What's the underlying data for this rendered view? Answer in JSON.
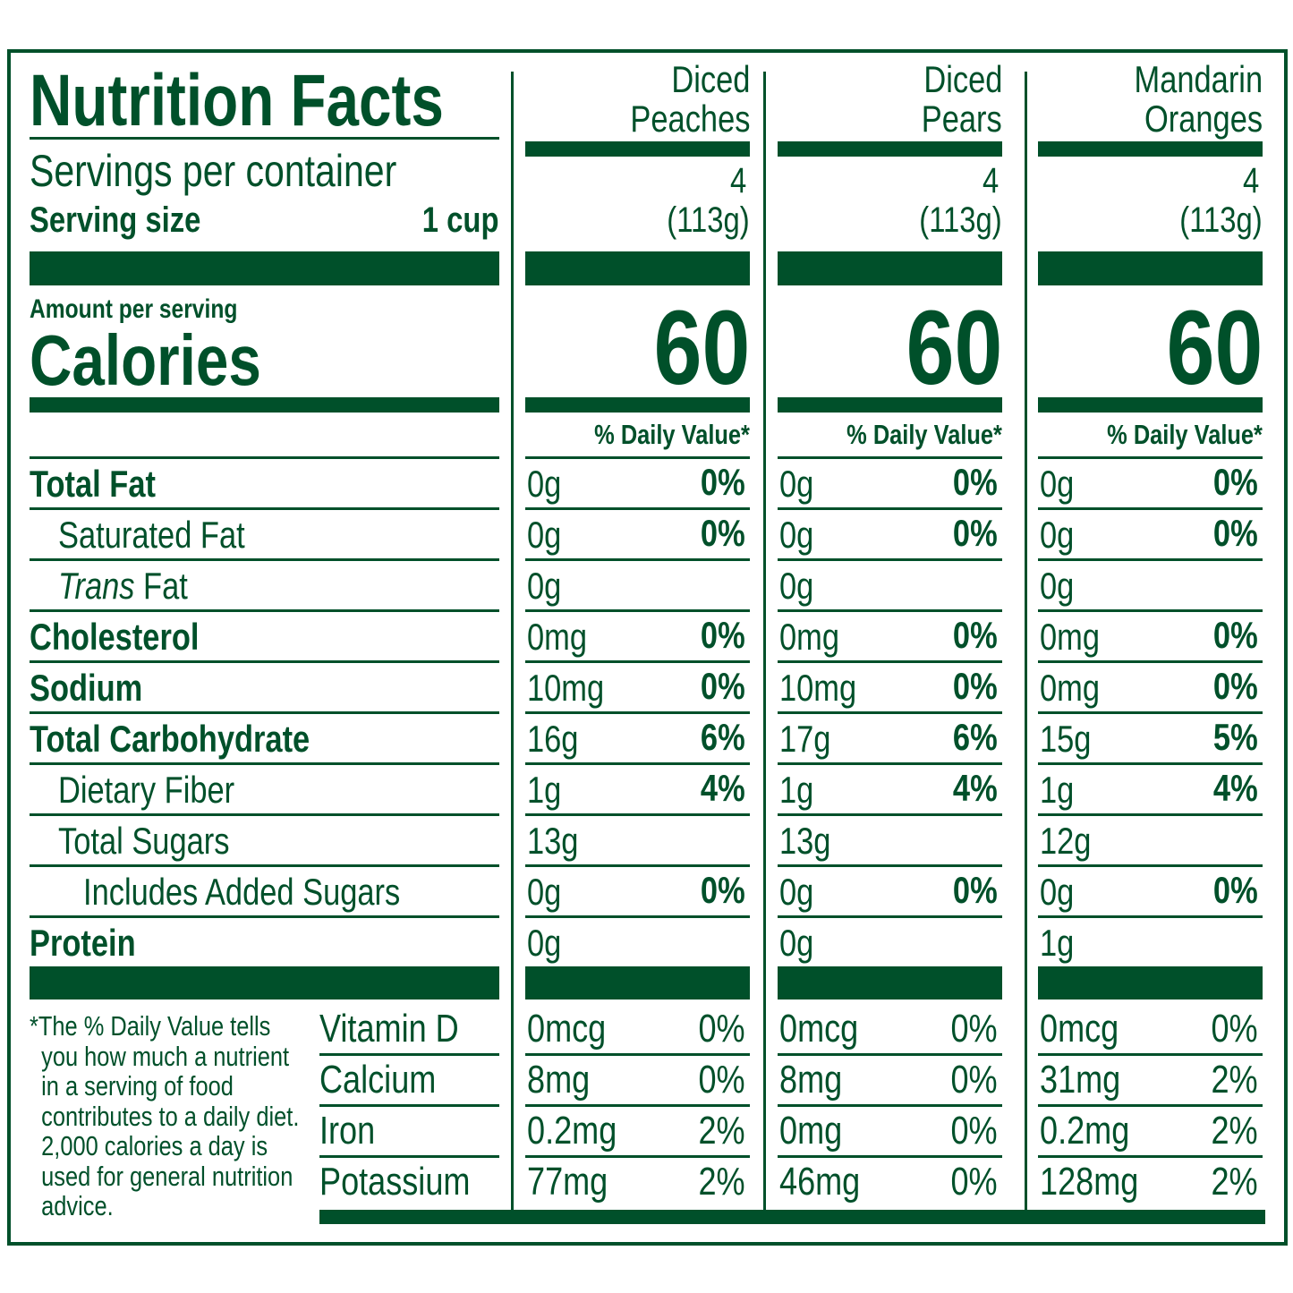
{
  "title": "Nutrition Facts",
  "servings_label": "Servings per container",
  "serving_size_label": "Serving size",
  "serving_size_value": "1 cup",
  "amount_per_serving": "Amount per serving",
  "calories_label": "Calories",
  "daily_value_header": "% Daily Value*",
  "columns": [
    {
      "name_line1": "Diced",
      "name_line2": "Peaches",
      "servings": "4",
      "serving_weight": "(113g)",
      "calories": "60",
      "nutrients": [
        [
          "0g",
          "0%"
        ],
        [
          "0g",
          "0%"
        ],
        [
          "0g",
          ""
        ],
        [
          "0mg",
          "0%"
        ],
        [
          "10mg",
          "0%"
        ],
        [
          "16g",
          "6%"
        ],
        [
          "1g",
          "4%"
        ],
        [
          "13g",
          ""
        ],
        [
          "0g",
          "0%"
        ],
        [
          "0g",
          ""
        ]
      ],
      "vitamins": [
        [
          "0mcg",
          "0%"
        ],
        [
          "8mg",
          "0%"
        ],
        [
          "0.2mg",
          "2%"
        ],
        [
          "77mg",
          "2%"
        ]
      ]
    },
    {
      "name_line1": "Diced",
      "name_line2": "Pears",
      "servings": "4",
      "serving_weight": "(113g)",
      "calories": "60",
      "nutrients": [
        [
          "0g",
          "0%"
        ],
        [
          "0g",
          "0%"
        ],
        [
          "0g",
          ""
        ],
        [
          "0mg",
          "0%"
        ],
        [
          "10mg",
          "0%"
        ],
        [
          "17g",
          "6%"
        ],
        [
          "1g",
          "4%"
        ],
        [
          "13g",
          ""
        ],
        [
          "0g",
          "0%"
        ],
        [
          "0g",
          ""
        ]
      ],
      "vitamins": [
        [
          "0mcg",
          "0%"
        ],
        [
          "8mg",
          "0%"
        ],
        [
          "0mg",
          "0%"
        ],
        [
          "46mg",
          "0%"
        ]
      ]
    },
    {
      "name_line1": "Mandarin",
      "name_line2": "Oranges",
      "servings": "4",
      "serving_weight": "(113g)",
      "calories": "60",
      "nutrients": [
        [
          "0g",
          "0%"
        ],
        [
          "0g",
          "0%"
        ],
        [
          "0g",
          ""
        ],
        [
          "0mg",
          "0%"
        ],
        [
          "0mg",
          "0%"
        ],
        [
          "15g",
          "5%"
        ],
        [
          "1g",
          "4%"
        ],
        [
          "12g",
          ""
        ],
        [
          "0g",
          "0%"
        ],
        [
          "1g",
          ""
        ]
      ],
      "vitamins": [
        [
          "0mcg",
          "0%"
        ],
        [
          "31mg",
          "2%"
        ],
        [
          "0.2mg",
          "2%"
        ],
        [
          "128mg",
          "2%"
        ]
      ]
    }
  ],
  "nutrient_labels": [
    {
      "label": "Total Fat",
      "bold": true,
      "indent": 0
    },
    {
      "label": "Saturated Fat",
      "bold": false,
      "indent": 1
    },
    {
      "label_italic": "Trans",
      "label": " Fat",
      "bold": false,
      "indent": 1
    },
    {
      "label": "Cholesterol",
      "bold": true,
      "indent": 0
    },
    {
      "label": "Sodium",
      "bold": true,
      "indent": 0
    },
    {
      "label": "Total Carbohydrate",
      "bold": true,
      "indent": 0
    },
    {
      "label": "Dietary Fiber",
      "bold": false,
      "indent": 1
    },
    {
      "label": "Total Sugars",
      "bold": false,
      "indent": 1
    },
    {
      "label": "Includes Added Sugars",
      "bold": false,
      "indent": 2
    },
    {
      "label": "Protein",
      "bold": true,
      "indent": 0
    }
  ],
  "vitamin_labels": [
    "Vitamin D",
    "Calcium",
    "Iron",
    "Potassium"
  ],
  "footnote": "*The % Daily Value tells you how much a nutrient in a serving of food contributes to a daily diet. 2,000 calories a day is used for general nutrition advice.",
  "colors": {
    "ink": "#00502a",
    "background": "#ffffff"
  }
}
